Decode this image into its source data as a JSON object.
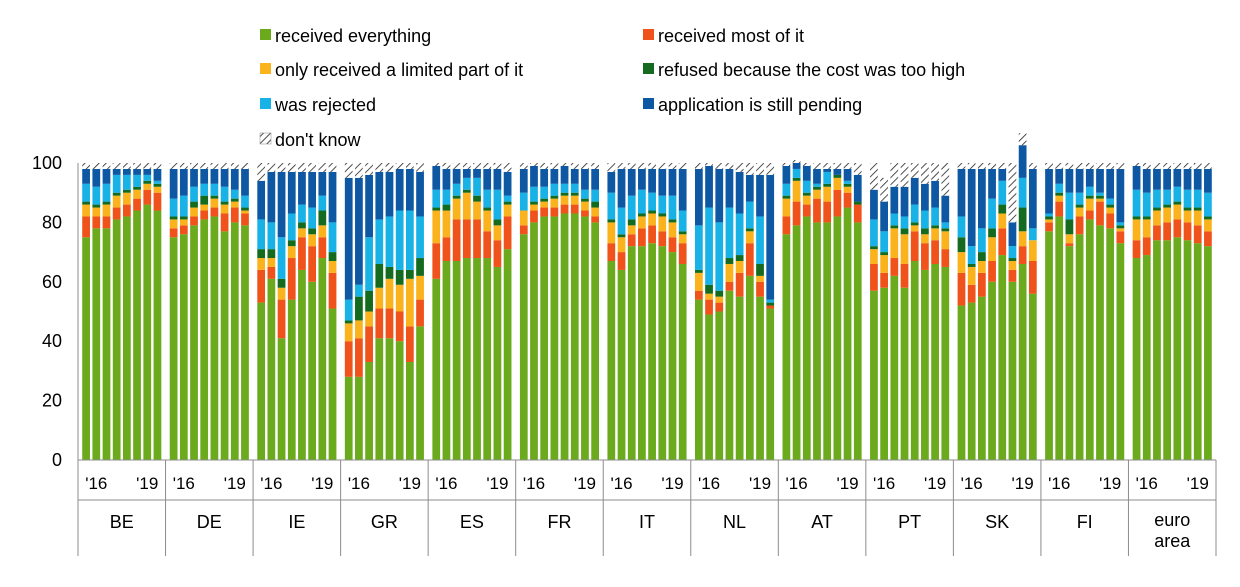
{
  "chart_data": {
    "type": "bar",
    "stacked": true,
    "ylim": [
      0,
      100
    ],
    "yticks": [
      0,
      20,
      40,
      60,
      80,
      100
    ],
    "year_ticks": [
      "'16",
      "'19"
    ],
    "legend": {
      "position": "top",
      "columns": 2,
      "items": [
        {
          "key": "rx_all",
          "label": "received everything",
          "color": "#6aaa1c",
          "pattern": false
        },
        {
          "key": "rx_most",
          "label": "received most of it",
          "color": "#f0521b",
          "pattern": false
        },
        {
          "key": "rx_limited",
          "label": "only received a limited part of it",
          "color": "#fbb31d",
          "pattern": false
        },
        {
          "key": "refused_cost",
          "label": "refused because the cost was too high",
          "color": "#146b1f",
          "pattern": false
        },
        {
          "key": "rejected",
          "label": "was rejected",
          "color": "#18b2e6",
          "pattern": false
        },
        {
          "key": "pending",
          "label": "application is still pending",
          "color": "#0d57a3",
          "pattern": false
        },
        {
          "key": "dont_know",
          "label": "don't know",
          "color": "#ffffff",
          "pattern": true
        }
      ]
    },
    "groups": [
      {
        "name": [
          "BE"
        ],
        "bars": [
          [
            75,
            7,
            4,
            1,
            6,
            5,
            2
          ],
          [
            78,
            4,
            3,
            1,
            6,
            6,
            2
          ],
          [
            78,
            4,
            4,
            1,
            6,
            5,
            2
          ],
          [
            81,
            4,
            4,
            1,
            6,
            2,
            2
          ],
          [
            82,
            4,
            4,
            1,
            5,
            2,
            2
          ],
          [
            84,
            4,
            3,
            1,
            4,
            2,
            2
          ],
          [
            86,
            5,
            2,
            1,
            2,
            2,
            2
          ],
          [
            84,
            6,
            2,
            1,
            1,
            4,
            2
          ]
        ]
      },
      {
        "name": [
          "DE"
        ],
        "bars": [
          [
            75,
            3,
            3,
            1,
            6,
            10,
            2
          ],
          [
            76,
            3,
            2,
            1,
            7,
            9,
            2
          ],
          [
            79,
            3,
            3,
            2,
            5,
            6,
            2
          ],
          [
            81,
            3,
            2,
            3,
            4,
            5,
            2
          ],
          [
            82,
            3,
            3,
            1,
            4,
            5,
            2
          ],
          [
            77,
            6,
            3,
            1,
            5,
            6,
            2
          ],
          [
            80,
            5,
            2,
            1,
            3,
            7,
            2
          ],
          [
            79,
            4,
            1,
            1,
            4,
            9,
            2
          ]
        ]
      },
      {
        "name": [
          "IE"
        ],
        "bars": [
          [
            53,
            11,
            4,
            3,
            10,
            13,
            6
          ],
          [
            61,
            4,
            3,
            3,
            9,
            17,
            3
          ],
          [
            41,
            13,
            4,
            3,
            14,
            22,
            3
          ],
          [
            54,
            14,
            4,
            2,
            9,
            14,
            3
          ],
          [
            64,
            11,
            3,
            2,
            6,
            11,
            3
          ],
          [
            60,
            12,
            4,
            2,
            7,
            12,
            3
          ],
          [
            68,
            7,
            4,
            5,
            5,
            8,
            3
          ],
          [
            51,
            12,
            4,
            3,
            10,
            17,
            3
          ]
        ]
      },
      {
        "name": [
          "GR"
        ],
        "bars": [
          [
            28,
            12,
            6,
            1,
            7,
            41,
            5
          ],
          [
            28,
            13,
            6,
            8,
            4,
            36,
            5
          ],
          [
            33,
            12,
            5,
            7,
            18,
            21,
            4
          ],
          [
            41,
            10,
            7,
            8,
            15,
            16,
            3
          ],
          [
            41,
            10,
            10,
            4,
            17,
            15,
            3
          ],
          [
            40,
            10,
            9,
            5,
            20,
            14,
            2
          ],
          [
            33,
            12,
            16,
            3,
            20,
            14,
            2
          ],
          [
            45,
            9,
            8,
            6,
            14,
            15,
            3
          ]
        ]
      },
      {
        "name": [
          "ES"
        ],
        "bars": [
          [
            61,
            12,
            11,
            1,
            6,
            8,
            1
          ],
          [
            67,
            8,
            9,
            2,
            5,
            7,
            2
          ],
          [
            67,
            14,
            7,
            1,
            4,
            5,
            2
          ],
          [
            68,
            13,
            9,
            1,
            4,
            3,
            2
          ],
          [
            68,
            13,
            6,
            2,
            6,
            3,
            2
          ],
          [
            68,
            9,
            7,
            1,
            6,
            7,
            2
          ],
          [
            65,
            9,
            5,
            2,
            10,
            7,
            2
          ],
          [
            71,
            11,
            4,
            1,
            2,
            8,
            3
          ]
        ]
      },
      {
        "name": [
          "FR"
        ],
        "bars": [
          [
            76,
            3,
            5,
            0,
            6,
            8,
            2
          ],
          [
            80,
            4,
            2,
            1,
            5,
            7,
            1
          ],
          [
            82,
            3,
            2,
            1,
            4,
            6,
            2
          ],
          [
            82,
            3,
            3,
            1,
            4,
            5,
            2
          ],
          [
            83,
            3,
            3,
            1,
            3,
            6,
            1
          ],
          [
            83,
            3,
            3,
            1,
            3,
            5,
            2
          ],
          [
            82,
            2,
            3,
            1,
            3,
            7,
            2
          ],
          [
            80,
            2,
            3,
            2,
            4,
            7,
            2
          ]
        ]
      },
      {
        "name": [
          "IT"
        ],
        "bars": [
          [
            67,
            6,
            7,
            1,
            9,
            7,
            3
          ],
          [
            64,
            6,
            5,
            1,
            9,
            13,
            2
          ],
          [
            72,
            4,
            3,
            2,
            8,
            9,
            2
          ],
          [
            72,
            6,
            4,
            1,
            8,
            7,
            2
          ],
          [
            73,
            6,
            4,
            1,
            6,
            8,
            2
          ],
          [
            72,
            5,
            5,
            1,
            6,
            9,
            2
          ],
          [
            70,
            5,
            5,
            1,
            8,
            9,
            2
          ],
          [
            66,
            7,
            3,
            1,
            7,
            14,
            2
          ]
        ]
      },
      {
        "name": [
          "NL"
        ],
        "bars": [
          [
            54,
            3,
            6,
            1,
            15,
            19,
            2
          ],
          [
            49,
            5,
            2,
            3,
            26,
            14,
            1
          ],
          [
            50,
            3,
            2,
            2,
            23,
            18,
            2
          ],
          [
            57,
            3,
            6,
            2,
            17,
            13,
            2
          ],
          [
            55,
            8,
            4,
            2,
            14,
            14,
            3
          ],
          [
            62,
            11,
            4,
            1,
            9,
            9,
            4
          ],
          [
            55,
            5,
            2,
            4,
            16,
            14,
            4
          ],
          [
            51,
            1,
            0,
            1,
            1,
            42,
            4
          ]
        ]
      },
      {
        "name": [
          "AT"
        ],
        "bars": [
          [
            76,
            6,
            6,
            1,
            4,
            6,
            1
          ],
          [
            79,
            8,
            7,
            1,
            3,
            2,
            1
          ],
          [
            82,
            4,
            3,
            1,
            4,
            5,
            1
          ],
          [
            80,
            8,
            3,
            1,
            1,
            5,
            2
          ],
          [
            80,
            7,
            5,
            1,
            4,
            1,
            2
          ],
          [
            82,
            9,
            4,
            1,
            0,
            2,
            2
          ],
          [
            85,
            5,
            2,
            1,
            1,
            4,
            2
          ],
          [
            80,
            6,
            0,
            1,
            0,
            9,
            4
          ]
        ]
      },
      {
        "name": [
          "PT"
        ],
        "bars": [
          [
            57,
            9,
            5,
            1,
            9,
            10,
            9
          ],
          [
            58,
            5,
            6,
            1,
            7,
            10,
            8
          ],
          [
            62,
            6,
            10,
            1,
            4,
            9,
            8
          ],
          [
            58,
            8,
            10,
            2,
            4,
            10,
            8
          ],
          [
            67,
            10,
            2,
            1,
            6,
            9,
            5
          ],
          [
            64,
            9,
            3,
            2,
            6,
            9,
            7
          ],
          [
            66,
            8,
            4,
            1,
            6,
            9,
            6
          ],
          [
            65,
            6,
            6,
            1,
            2,
            9,
            11
          ]
        ]
      },
      {
        "name": [
          "SK"
        ],
        "bars": [
          [
            52,
            11,
            7,
            5,
            7,
            16,
            2
          ],
          [
            53,
            6,
            6,
            1,
            6,
            26,
            2
          ],
          [
            55,
            8,
            4,
            3,
            8,
            20,
            2
          ],
          [
            60,
            7,
            8,
            3,
            10,
            10,
            2
          ],
          [
            69,
            9,
            5,
            3,
            8,
            4,
            2
          ],
          [
            60,
            4,
            3,
            1,
            4,
            8,
            20
          ],
          [
            66,
            6,
            5,
            8,
            10,
            11,
            4
          ],
          [
            56,
            11,
            7,
            0,
            4,
            20,
            2
          ]
        ]
      },
      {
        "name": [
          "FI"
        ],
        "bars": [
          [
            77,
            3,
            1,
            1,
            1,
            15,
            2
          ],
          [
            82,
            5,
            2,
            1,
            3,
            5,
            2
          ],
          [
            72,
            1,
            3,
            5,
            9,
            8,
            2
          ],
          [
            76,
            6,
            3,
            1,
            4,
            8,
            2
          ],
          [
            81,
            3,
            4,
            1,
            3,
            6,
            2
          ],
          [
            79,
            8,
            1,
            1,
            1,
            8,
            2
          ],
          [
            78,
            5,
            2,
            1,
            2,
            10,
            2
          ],
          [
            73,
            4,
            1,
            1,
            1,
            18,
            2
          ]
        ]
      },
      {
        "name": [
          "euro",
          "area"
        ],
        "bars": [
          [
            68,
            6,
            7,
            1,
            9,
            8,
            1
          ],
          [
            69,
            6,
            6,
            1,
            8,
            8,
            2
          ],
          [
            74,
            5,
            5,
            1,
            6,
            7,
            2
          ],
          [
            74,
            6,
            5,
            1,
            5,
            7,
            2
          ],
          [
            75,
            6,
            5,
            1,
            5,
            6,
            2
          ],
          [
            74,
            6,
            4,
            1,
            6,
            7,
            2
          ],
          [
            73,
            6,
            5,
            1,
            6,
            7,
            2
          ],
          [
            72,
            5,
            4,
            1,
            8,
            8,
            2
          ]
        ]
      }
    ]
  }
}
